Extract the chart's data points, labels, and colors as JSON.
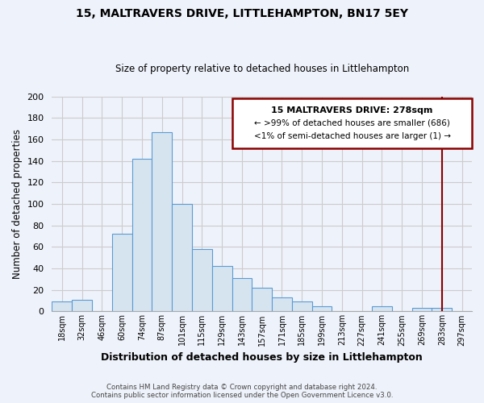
{
  "title": "15, MALTRAVERS DRIVE, LITTLEHAMPTON, BN17 5EY",
  "subtitle": "Size of property relative to detached houses in Littlehampton",
  "xlabel": "Distribution of detached houses by size in Littlehampton",
  "ylabel": "Number of detached properties",
  "footer_line1": "Contains HM Land Registry data © Crown copyright and database right 2024.",
  "footer_line2": "Contains public sector information licensed under the Open Government Licence v3.0.",
  "bin_labels": [
    "18sqm",
    "32sqm",
    "46sqm",
    "60sqm",
    "74sqm",
    "87sqm",
    "101sqm",
    "115sqm",
    "129sqm",
    "143sqm",
    "157sqm",
    "171sqm",
    "185sqm",
    "199sqm",
    "213sqm",
    "227sqm",
    "241sqm",
    "255sqm",
    "269sqm",
    "283sqm",
    "297sqm"
  ],
  "bar_heights": [
    9,
    11,
    0,
    72,
    142,
    167,
    100,
    58,
    42,
    31,
    22,
    13,
    9,
    5,
    0,
    0,
    5,
    0,
    3,
    3,
    0
  ],
  "bar_color": "#d6e4f0",
  "bar_edge_color": "#5b9bd5",
  "vline_color": "#8b0000",
  "vline_pos": 19.0,
  "annotation_title": "15 MALTRAVERS DRIVE: 278sqm",
  "annotation_line1": "← >99% of detached houses are smaller (686)",
  "annotation_line2": "<1% of semi-detached houses are larger (1) →",
  "annotation_box_color": "#ffffff",
  "annotation_box_edge": "#8b0000",
  "grid_color": "#cccccc",
  "bg_color": "#eef2fa",
  "plot_bg_color": "#eef2fa",
  "ylim": [
    0,
    200
  ],
  "yticks": [
    0,
    20,
    40,
    60,
    80,
    100,
    120,
    140,
    160,
    180,
    200
  ]
}
